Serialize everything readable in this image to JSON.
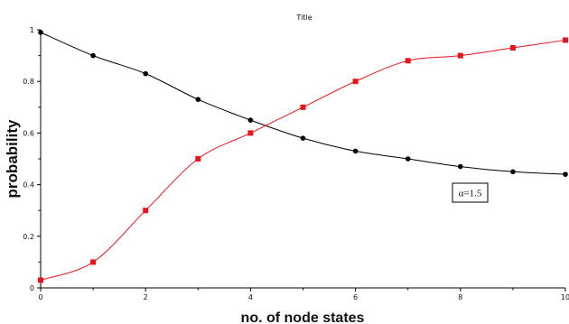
{
  "chart_data": {
    "type": "line",
    "title": "Title",
    "xlabel": "no. of node states",
    "ylabel": "probability",
    "xlim": [
      0,
      10
    ],
    "ylim": [
      0,
      1
    ],
    "x_ticks": [
      "0",
      "2",
      "4",
      "6",
      "8",
      "10"
    ],
    "y_ticks": [
      "0",
      "0.2",
      "0.4",
      "0.6",
      "0.8",
      "1"
    ],
    "grid": false,
    "legend": null,
    "annotation": "α=1.5",
    "x": [
      0,
      1,
      2,
      3,
      4,
      5,
      6,
      7,
      8,
      9,
      10
    ],
    "series": [
      {
        "color": "#000000",
        "marker": "circle",
        "values": [
          0.99,
          0.9,
          0.83,
          0.73,
          0.65,
          0.58,
          0.53,
          0.5,
          0.47,
          0.45,
          0.44
        ]
      },
      {
        "color": "#e8141a",
        "marker": "square",
        "values": [
          0.03,
          0.1,
          0.3,
          0.5,
          0.6,
          0.7,
          0.8,
          0.88,
          0.9,
          0.93,
          0.96
        ]
      }
    ]
  }
}
